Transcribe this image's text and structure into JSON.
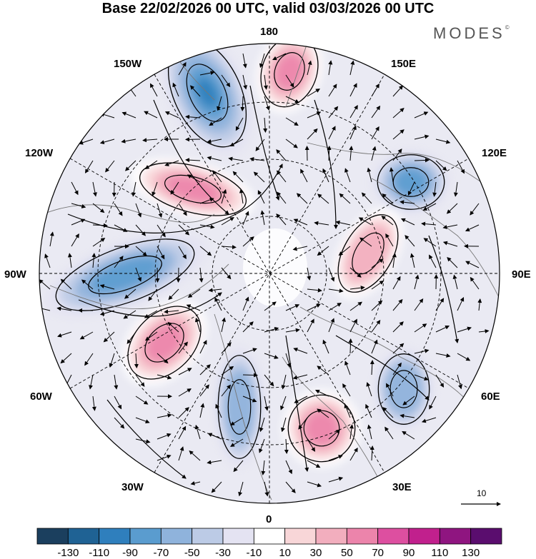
{
  "title": "Base 22/02/2026 00 UTC, valid 03/03/2026 00 UTC",
  "brand": "MODES",
  "brand_mark": "©",
  "longitude_labels": {
    "top": "180",
    "bottom": "0",
    "left": "90W",
    "right": "90E",
    "upper_left": "150W",
    "upper_right": "150E",
    "mid_upper_left": "120W",
    "mid_upper_right": "120E",
    "mid_lower_left": "60W",
    "mid_lower_right": "60E",
    "lower_left": "30W",
    "lower_right": "30E"
  },
  "reference_vector": {
    "label": "10"
  },
  "colorbar": {
    "labels": [
      "-130",
      "-110",
      "-90",
      "-70",
      "-50",
      "-30",
      "-10",
      "10",
      "30",
      "50",
      "70",
      "90",
      "110",
      "130"
    ],
    "colors": [
      "#1b3f5e",
      "#1f6294",
      "#2f7fbd",
      "#5a9ccf",
      "#8fb3dc",
      "#bccbe6",
      "#e4e3f2",
      "#ffffff",
      "#f8d6d8",
      "#f2aebe",
      "#ec84ab",
      "#dd4fa0",
      "#c1208d",
      "#8f1580",
      "#5a0d6e"
    ]
  },
  "anomaly_centers": [
    {
      "sign": "negative",
      "value": -90,
      "region": "near 150W-180"
    },
    {
      "sign": "positive",
      "value": 70,
      "region": "near 180-150E"
    },
    {
      "sign": "positive",
      "value": 70,
      "region": "near 120W"
    },
    {
      "sign": "negative",
      "value": -70,
      "region": "near 120E"
    },
    {
      "sign": "negative",
      "value": -70,
      "region": "near 90W"
    },
    {
      "sign": "positive",
      "value": 50,
      "region": "near 90E-120E"
    },
    {
      "sign": "positive",
      "value": 70,
      "region": "near 60W"
    },
    {
      "sign": "negative",
      "value": -50,
      "region": "near 30W"
    },
    {
      "sign": "positive",
      "value": 70,
      "region": "near 30E"
    },
    {
      "sign": "negative",
      "value": -50,
      "region": "near 60E"
    }
  ]
}
